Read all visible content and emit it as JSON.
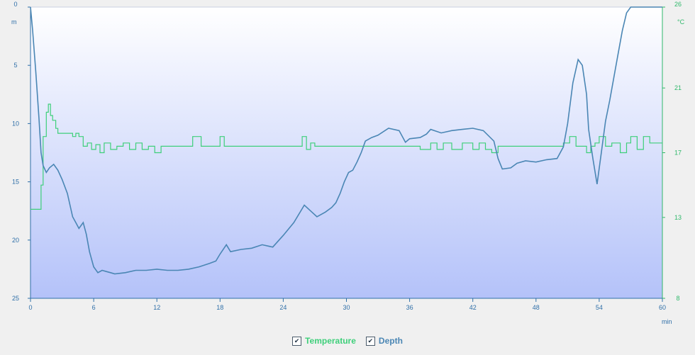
{
  "chart_data": {
    "type": "line",
    "x_axis": {
      "unit": "min",
      "range": [
        0,
        60
      ],
      "ticks": [
        "0",
        "6",
        "12",
        "18",
        "24",
        "30",
        "36",
        "42",
        "48",
        "54",
        "60"
      ]
    },
    "y_left": {
      "label": "m",
      "range": [
        0,
        25
      ],
      "reversed": true,
      "ticks": [
        "0",
        "5",
        "10",
        "15",
        "20",
        "25"
      ]
    },
    "y_right": {
      "label": "°C",
      "range": [
        8,
        26
      ],
      "ticks": [
        "26",
        "21",
        "17",
        "13",
        "8"
      ],
      "tick_values": [
        26,
        21,
        17,
        13,
        8
      ]
    },
    "grid": false,
    "legend_position": "bottom-center",
    "colors": {
      "temperature": "#3ecf7a",
      "depth": "#4a86b4",
      "left_axis": "#2f6fa8",
      "right_axis": "#2fb86a"
    },
    "series": [
      {
        "name": "Temperature",
        "axis": "right",
        "x": [
          0,
          0.8,
          1.0,
          1.2,
          1.5,
          1.7,
          1.9,
          2.1,
          2.4,
          2.6,
          3.0,
          3.5,
          4.0,
          4.3,
          4.6,
          5.0,
          5.4,
          5.8,
          6.2,
          6.6,
          7.0,
          7.6,
          8.2,
          8.8,
          9.4,
          10.0,
          10.6,
          11.2,
          11.8,
          12.4,
          13.0,
          15.0,
          15.4,
          16.2,
          16.6,
          17.0,
          18.0,
          18.4,
          19.0,
          20.0,
          22.0,
          24.0,
          25.4,
          25.8,
          26.2,
          26.6,
          27.0,
          28.0,
          30.0,
          32.0,
          36.0,
          37.0,
          38.0,
          38.6,
          39.2,
          40.0,
          41.0,
          42.0,
          42.6,
          43.2,
          43.8,
          44.4,
          45.0,
          48.0,
          50.0,
          50.6,
          51.2,
          51.8,
          52.4,
          52.8,
          53.2,
          53.6,
          54.0,
          54.6,
          55.2,
          56.0,
          56.6,
          57.0,
          57.6,
          58.2,
          58.8,
          60.0
        ],
        "values": [
          13.5,
          13.5,
          15.0,
          18.0,
          19.5,
          20.0,
          19.3,
          19.0,
          18.5,
          18.2,
          18.2,
          18.2,
          18.0,
          18.2,
          18.0,
          17.4,
          17.6,
          17.2,
          17.5,
          17.0,
          17.6,
          17.2,
          17.4,
          17.6,
          17.2,
          17.6,
          17.2,
          17.4,
          17.0,
          17.4,
          17.4,
          17.4,
          18.0,
          17.4,
          17.4,
          17.4,
          18.0,
          17.4,
          17.4,
          17.4,
          17.4,
          17.4,
          17.4,
          18.0,
          17.2,
          17.6,
          17.4,
          17.4,
          17.4,
          17.4,
          17.4,
          17.2,
          17.6,
          17.2,
          17.6,
          17.2,
          17.6,
          17.2,
          17.6,
          17.2,
          17.0,
          17.4,
          17.4,
          17.4,
          17.4,
          17.6,
          18.0,
          17.4,
          17.4,
          17.0,
          17.4,
          17.6,
          18.0,
          17.4,
          17.6,
          17.0,
          17.6,
          18.0,
          17.2,
          18.0,
          17.6,
          17.6
        ]
      },
      {
        "name": "Depth",
        "axis": "left",
        "x": [
          0,
          0.2,
          0.5,
          0.8,
          1.0,
          1.2,
          1.5,
          1.8,
          2.2,
          2.6,
          3.0,
          3.5,
          4.0,
          4.3,
          4.6,
          5.0,
          5.3,
          5.6,
          6.0,
          6.4,
          6.8,
          7.2,
          7.6,
          8.0,
          9.0,
          10.0,
          11.0,
          12.0,
          13.0,
          14.0,
          15.0,
          16.0,
          17.0,
          17.6,
          18.0,
          18.6,
          19.0,
          20.0,
          21.0,
          22.0,
          23.0,
          24.0,
          25.0,
          26.0,
          26.6,
          27.2,
          28.0,
          28.6,
          29.0,
          29.4,
          29.8,
          30.2,
          30.6,
          31.0,
          31.4,
          31.8,
          32.4,
          33.0,
          34.0,
          35.0,
          35.6,
          36.0,
          37.0,
          37.6,
          38.0,
          39.0,
          40.0,
          41.0,
          42.0,
          43.0,
          44.0,
          44.4,
          44.8,
          45.6,
          46.2,
          47.0,
          48.0,
          49.0,
          50.0,
          50.6,
          51.0,
          51.5,
          52.0,
          52.4,
          52.8,
          53.0,
          53.4,
          53.8,
          54.2,
          54.6,
          55.0,
          55.4,
          55.8,
          56.2,
          56.6,
          57.0,
          58.0,
          59.0,
          60.0
        ],
        "values": [
          0,
          2,
          5.5,
          9.5,
          12.5,
          13.6,
          14.2,
          13.8,
          13.5,
          14.0,
          14.8,
          16.0,
          18.0,
          18.5,
          19.0,
          18.5,
          19.5,
          21.0,
          22.3,
          22.8,
          22.6,
          22.7,
          22.8,
          22.9,
          22.8,
          22.6,
          22.6,
          22.5,
          22.6,
          22.6,
          22.5,
          22.3,
          22.0,
          21.8,
          21.2,
          20.4,
          21.0,
          20.8,
          20.7,
          20.4,
          20.6,
          19.6,
          18.5,
          17.0,
          17.5,
          18.0,
          17.6,
          17.2,
          16.8,
          16.0,
          15.0,
          14.2,
          14.0,
          13.3,
          12.5,
          11.5,
          11.2,
          11.0,
          10.4,
          10.6,
          11.6,
          11.3,
          11.2,
          10.9,
          10.5,
          10.8,
          10.6,
          10.5,
          10.4,
          10.6,
          11.5,
          13.0,
          13.9,
          13.8,
          13.4,
          13.2,
          13.3,
          13.1,
          13.0,
          12.0,
          10.0,
          6.5,
          4.5,
          5.0,
          7.5,
          10.5,
          13.0,
          15.2,
          12.5,
          9.8,
          8.0,
          6.0,
          4.0,
          2.0,
          0.5,
          0.0,
          0.0,
          0.0,
          0.0
        ]
      }
    ]
  },
  "legend": {
    "temperature_label": "Temperature",
    "depth_label": "Depth",
    "check_mark": "✔"
  }
}
